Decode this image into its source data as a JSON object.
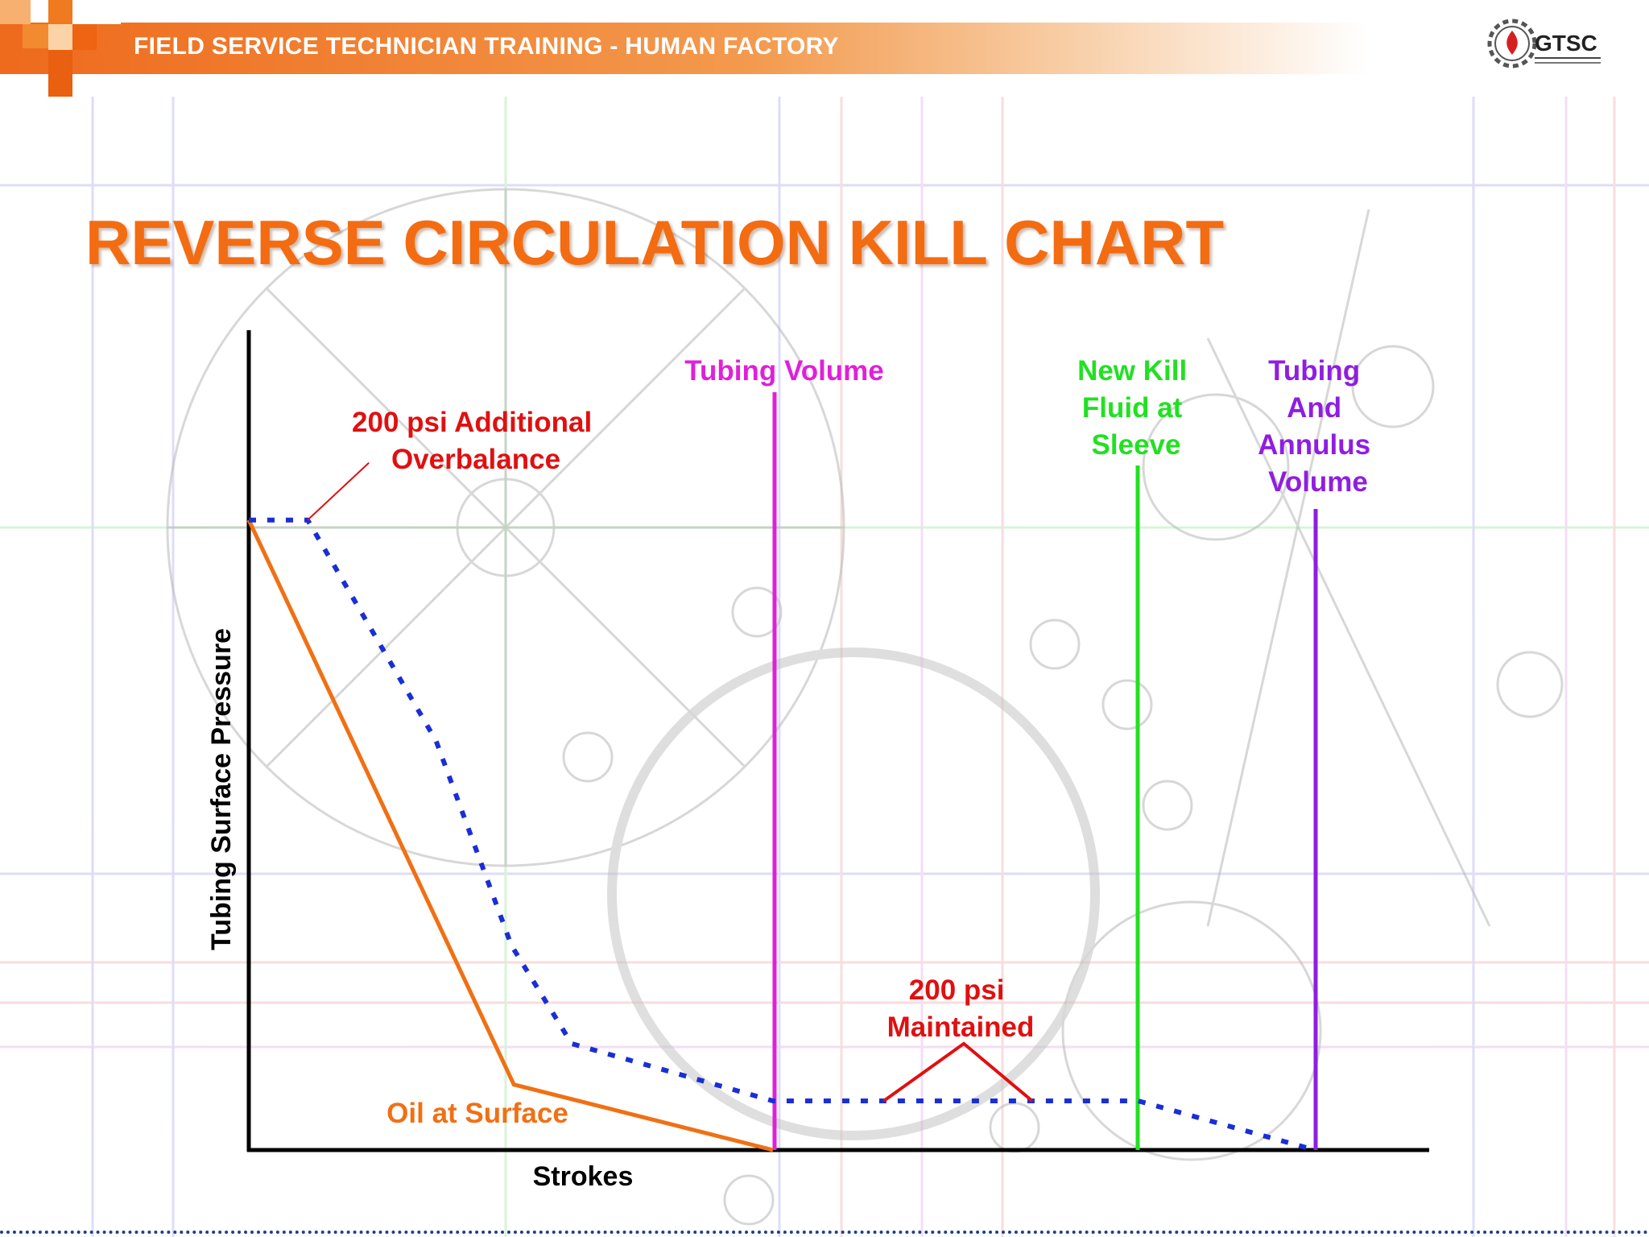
{
  "header": {
    "title": "FIELD SERVICE TECHNICIAN TRAINING - HUMAN FACTORY",
    "logo_text": "GTSC",
    "colors": {
      "band": "#ee6a1c",
      "title_text": "#ffffff"
    }
  },
  "slide": {
    "title": "REVERSE CIRCULATION KILL CHART",
    "title_color": "#f36c12"
  },
  "chart_data": {
    "type": "line",
    "title": "REVERSE CIRCULATION KILL CHART",
    "xlabel": "Strokes",
    "ylabel": "Tubing Surface Pressure",
    "xlim": [
      0,
      100
    ],
    "ylim": [
      0,
      100
    ],
    "grid": false,
    "tick_labels": false,
    "series": [
      {
        "key": "oil",
        "line_style": "solid",
        "color": "#f07014",
        "points": [
          [
            0,
            77
          ],
          [
            22.5,
            8
          ],
          [
            44.5,
            0
          ]
        ]
      },
      {
        "key": "kill",
        "line_style": "dotted",
        "color": "#1a2ed6",
        "points": [
          [
            0,
            77
          ],
          [
            5,
            77
          ],
          [
            15.9,
            50
          ],
          [
            22.3,
            25
          ],
          [
            27.4,
            13
          ],
          [
            44.5,
            6
          ],
          [
            75.5,
            6
          ],
          [
            90.5,
            0
          ]
        ]
      }
    ],
    "vertical_markers": [
      {
        "label": "Tubing Volume",
        "x": 44.5,
        "y_top": 92,
        "color": "#e020d8"
      },
      {
        "label": "New Kill Fluid at Sleeve",
        "label_lines": [
          "New Kill",
          "Fluid at",
          "Sleeve"
        ],
        "x": 75.5,
        "y_top": 83,
        "color": "#22e022"
      },
      {
        "label": "Tubing And Annulus Volume",
        "label_lines": [
          "Tubing",
          "And",
          "Annulus",
          "Volume"
        ],
        "x": 90.5,
        "y_top": 78,
        "color": "#8f1ee0"
      }
    ],
    "annotations": [
      {
        "key": "overbalance",
        "text_lines": [
          "200 psi Additional",
          "Overbalance"
        ],
        "color": "#e01010",
        "leader": [
          [
            5,
            77
          ],
          [
            10.2,
            84
          ]
        ]
      },
      {
        "key": "maintained",
        "text_lines": [
          "200 psi",
          "Maintained"
        ],
        "color": "#e01010",
        "leader": [
          [
            53.9,
            6
          ],
          [
            60.7,
            13
          ],
          [
            66.5,
            6
          ]
        ]
      },
      {
        "key": "oil_label",
        "text_lines": [
          "Oil at Surface"
        ],
        "color": "#f07014"
      }
    ]
  }
}
